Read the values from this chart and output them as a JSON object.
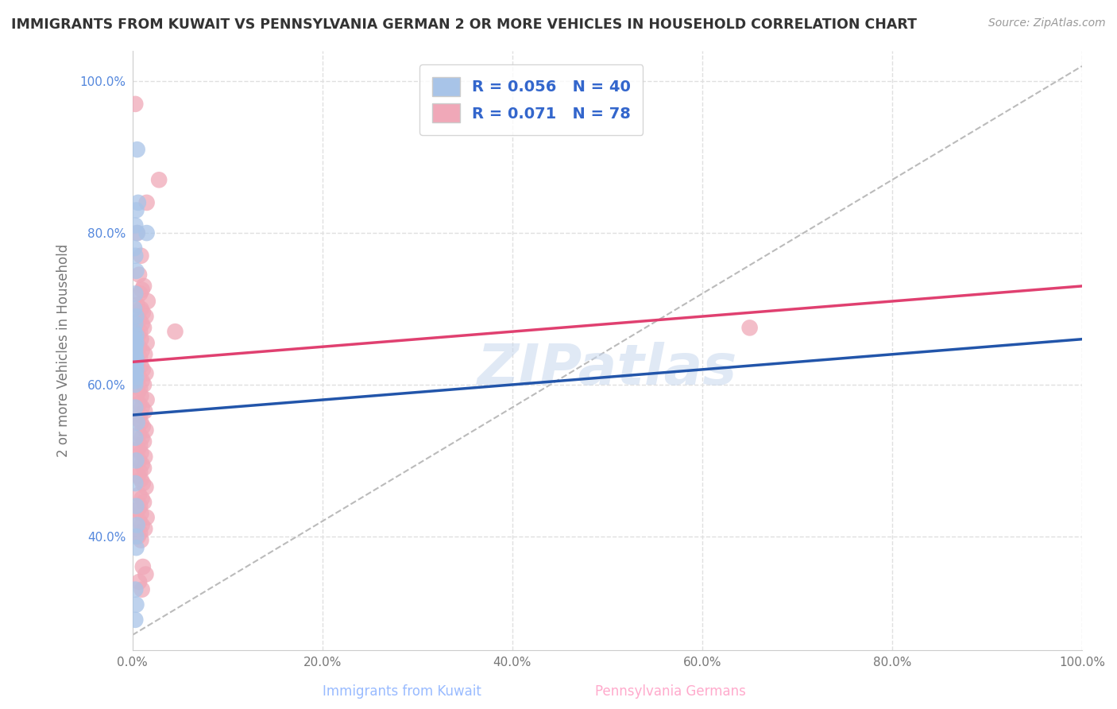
{
  "title": "IMMIGRANTS FROM KUWAIT VS PENNSYLVANIA GERMAN 2 OR MORE VEHICLES IN HOUSEHOLD CORRELATION CHART",
  "source": "Source: ZipAtlas.com",
  "xlabel_bottom": "Immigrants from Kuwait",
  "xlabel_bottom2": "Pennsylvania Germans",
  "ylabel": "2 or more Vehicles in Household",
  "blue_R": 0.056,
  "blue_N": 40,
  "pink_R": 0.071,
  "pink_N": 78,
  "blue_color": "#a8c4e8",
  "pink_color": "#f0a8b8",
  "blue_line_color": "#2255aa",
  "pink_line_color": "#e04070",
  "watermark_text": "ZIPatlas",
  "blue_scatter_x": [
    0.5,
    0.6,
    0.4,
    0.3,
    0.5,
    1.5,
    0.2,
    0.3,
    0.4,
    0.3,
    0.2,
    0.4,
    0.3,
    0.2,
    0.4,
    0.3,
    0.4,
    0.3,
    0.3,
    0.3,
    0.4,
    0.4,
    0.3,
    0.4,
    0.3,
    0.4,
    0.3,
    0.3,
    0.3,
    0.5,
    0.3,
    0.4,
    0.3,
    0.4,
    0.5,
    0.4,
    0.4,
    0.3,
    0.4,
    0.3
  ],
  "blue_scatter_y": [
    91.0,
    84.0,
    83.0,
    81.0,
    80.0,
    80.0,
    78.0,
    77.0,
    75.0,
    72.0,
    70.0,
    69.0,
    68.0,
    67.0,
    66.5,
    66.0,
    65.5,
    65.0,
    64.5,
    64.0,
    63.5,
    63.0,
    62.5,
    62.0,
    61.5,
    61.0,
    60.5,
    60.0,
    57.0,
    55.0,
    53.0,
    50.0,
    47.0,
    44.0,
    41.5,
    40.0,
    38.5,
    33.0,
    31.0,
    29.0
  ],
  "pink_scatter_x": [
    0.3,
    2.8,
    1.5,
    0.5,
    0.9,
    0.7,
    1.2,
    1.0,
    0.8,
    1.6,
    0.5,
    0.9,
    1.1,
    1.4,
    0.7,
    1.0,
    1.2,
    0.8,
    0.6,
    0.9,
    1.5,
    0.7,
    1.0,
    1.3,
    0.8,
    0.6,
    0.9,
    1.1,
    1.4,
    0.7,
    1.0,
    1.2,
    0.8,
    0.6,
    0.9,
    1.5,
    0.7,
    1.0,
    1.3,
    0.8,
    0.6,
    0.9,
    1.1,
    1.4,
    0.7,
    1.0,
    1.2,
    0.8,
    0.6,
    0.9,
    1.3,
    0.7,
    1.0,
    1.2,
    0.8,
    0.6,
    4.5,
    65.0,
    0.9,
    1.1,
    1.4,
    0.7,
    1.0,
    1.2,
    0.8,
    0.6,
    0.9,
    1.5,
    0.7,
    1.0,
    1.3,
    0.8,
    0.6,
    0.9,
    1.1,
    1.4,
    0.7,
    1.0
  ],
  "pink_scatter_y": [
    97.0,
    87.0,
    84.0,
    80.0,
    77.0,
    74.5,
    73.0,
    72.5,
    72.0,
    71.0,
    70.5,
    70.0,
    69.5,
    69.0,
    68.5,
    68.0,
    67.5,
    67.0,
    66.5,
    66.0,
    65.5,
    65.0,
    64.5,
    64.0,
    63.5,
    63.0,
    62.5,
    62.0,
    61.5,
    61.0,
    60.5,
    60.0,
    59.5,
    59.0,
    58.5,
    58.0,
    57.5,
    57.0,
    56.5,
    56.0,
    55.5,
    55.0,
    54.5,
    54.0,
    53.5,
    53.0,
    52.5,
    52.0,
    51.5,
    51.0,
    50.5,
    50.0,
    49.5,
    49.0,
    48.5,
    48.0,
    67.0,
    67.5,
    47.5,
    47.0,
    46.5,
    45.5,
    45.0,
    44.5,
    44.0,
    43.5,
    43.0,
    42.5,
    42.0,
    41.5,
    41.0,
    40.5,
    40.0,
    39.5,
    36.0,
    35.0,
    34.0,
    33.0
  ],
  "xlim": [
    0.0,
    100.0
  ],
  "ylim": [
    25.0,
    104.0
  ],
  "yticks": [
    40.0,
    60.0,
    80.0,
    100.0
  ],
  "ytick_labels": [
    "40.0%",
    "60.0%",
    "80.0%",
    "100.0%"
  ],
  "xticks": [
    0.0,
    20.0,
    40.0,
    60.0,
    80.0,
    100.0
  ],
  "xtick_labels": [
    "0.0%",
    "20.0%",
    "40.0%",
    "60.0%",
    "80.0%",
    "100.0%"
  ],
  "background_color": "#ffffff",
  "grid_color": "#e0e0e0",
  "blue_trend_x0": 0.0,
  "blue_trend_y0": 56.0,
  "blue_trend_x1": 100.0,
  "blue_trend_y1": 66.0,
  "pink_trend_x0": 0.0,
  "pink_trend_y0": 63.0,
  "pink_trend_x1": 100.0,
  "pink_trend_y1": 73.0,
  "diag_x0": 0.0,
  "diag_y0": 27.0,
  "diag_x1": 100.0,
  "diag_y1": 102.0
}
